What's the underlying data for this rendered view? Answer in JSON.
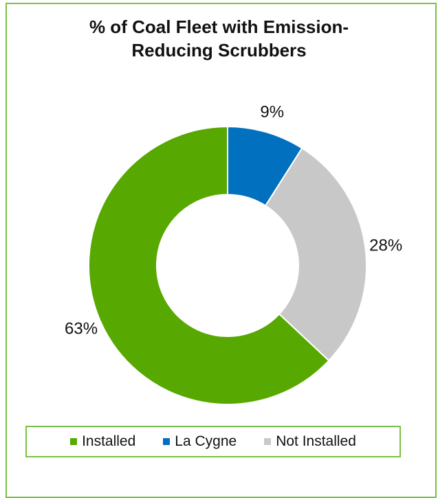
{
  "chart_data": {
    "type": "pie",
    "title_lines": [
      "% of Coal Fleet with Emission-",
      "Reducing Scrubbers"
    ],
    "categories": [
      "Installed",
      "La Cygne",
      "Not Installed"
    ],
    "values": [
      63,
      9,
      28
    ],
    "data_labels": [
      "63%",
      "9%",
      "28%"
    ],
    "colors": [
      "#57a800",
      "#0070bf",
      "#c8c8c8"
    ],
    "donut": true,
    "legend_position": "bottom"
  }
}
